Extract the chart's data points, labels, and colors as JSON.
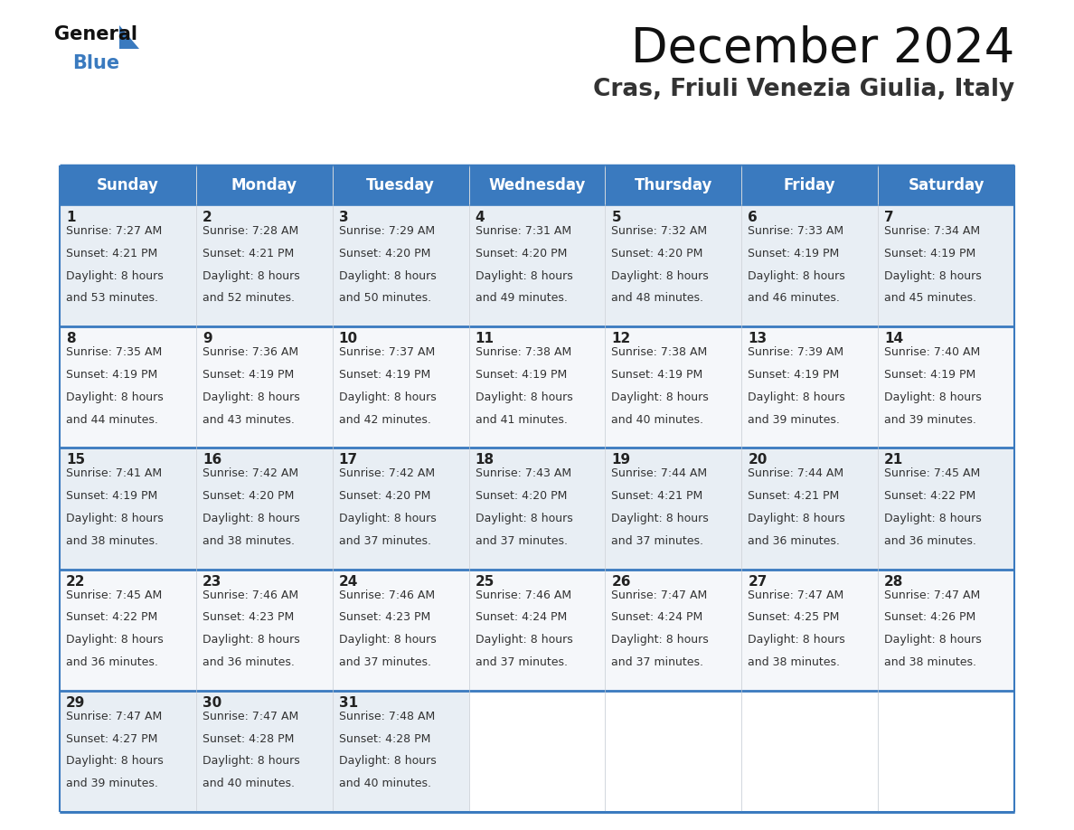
{
  "title": "December 2024",
  "subtitle": "Cras, Friuli Venezia Giulia, Italy",
  "header_color": "#3a7abf",
  "header_text_color": "#ffffff",
  "cell_bg_even": "#e8eef4",
  "cell_bg_odd": "#f5f7fa",
  "border_color": "#3a7abf",
  "sep_color": "#3a7abf",
  "col_line_color": "#c0c8d0",
  "day_names": [
    "Sunday",
    "Monday",
    "Tuesday",
    "Wednesday",
    "Thursday",
    "Friday",
    "Saturday"
  ],
  "days": [
    {
      "day": 1,
      "col": 0,
      "row": 0,
      "sunrise": "7:27 AM",
      "sunset": "4:21 PM",
      "daylight_hrs": 8,
      "daylight_min": "53 minutes."
    },
    {
      "day": 2,
      "col": 1,
      "row": 0,
      "sunrise": "7:28 AM",
      "sunset": "4:21 PM",
      "daylight_hrs": 8,
      "daylight_min": "52 minutes."
    },
    {
      "day": 3,
      "col": 2,
      "row": 0,
      "sunrise": "7:29 AM",
      "sunset": "4:20 PM",
      "daylight_hrs": 8,
      "daylight_min": "50 minutes."
    },
    {
      "day": 4,
      "col": 3,
      "row": 0,
      "sunrise": "7:31 AM",
      "sunset": "4:20 PM",
      "daylight_hrs": 8,
      "daylight_min": "49 minutes."
    },
    {
      "day": 5,
      "col": 4,
      "row": 0,
      "sunrise": "7:32 AM",
      "sunset": "4:20 PM",
      "daylight_hrs": 8,
      "daylight_min": "48 minutes."
    },
    {
      "day": 6,
      "col": 5,
      "row": 0,
      "sunrise": "7:33 AM",
      "sunset": "4:19 PM",
      "daylight_hrs": 8,
      "daylight_min": "46 minutes."
    },
    {
      "day": 7,
      "col": 6,
      "row": 0,
      "sunrise": "7:34 AM",
      "sunset": "4:19 PM",
      "daylight_hrs": 8,
      "daylight_min": "45 minutes."
    },
    {
      "day": 8,
      "col": 0,
      "row": 1,
      "sunrise": "7:35 AM",
      "sunset": "4:19 PM",
      "daylight_hrs": 8,
      "daylight_min": "44 minutes."
    },
    {
      "day": 9,
      "col": 1,
      "row": 1,
      "sunrise": "7:36 AM",
      "sunset": "4:19 PM",
      "daylight_hrs": 8,
      "daylight_min": "43 minutes."
    },
    {
      "day": 10,
      "col": 2,
      "row": 1,
      "sunrise": "7:37 AM",
      "sunset": "4:19 PM",
      "daylight_hrs": 8,
      "daylight_min": "42 minutes."
    },
    {
      "day": 11,
      "col": 3,
      "row": 1,
      "sunrise": "7:38 AM",
      "sunset": "4:19 PM",
      "daylight_hrs": 8,
      "daylight_min": "41 minutes."
    },
    {
      "day": 12,
      "col": 4,
      "row": 1,
      "sunrise": "7:38 AM",
      "sunset": "4:19 PM",
      "daylight_hrs": 8,
      "daylight_min": "40 minutes."
    },
    {
      "day": 13,
      "col": 5,
      "row": 1,
      "sunrise": "7:39 AM",
      "sunset": "4:19 PM",
      "daylight_hrs": 8,
      "daylight_min": "39 minutes."
    },
    {
      "day": 14,
      "col": 6,
      "row": 1,
      "sunrise": "7:40 AM",
      "sunset": "4:19 PM",
      "daylight_hrs": 8,
      "daylight_min": "39 minutes."
    },
    {
      "day": 15,
      "col": 0,
      "row": 2,
      "sunrise": "7:41 AM",
      "sunset": "4:19 PM",
      "daylight_hrs": 8,
      "daylight_min": "38 minutes."
    },
    {
      "day": 16,
      "col": 1,
      "row": 2,
      "sunrise": "7:42 AM",
      "sunset": "4:20 PM",
      "daylight_hrs": 8,
      "daylight_min": "38 minutes."
    },
    {
      "day": 17,
      "col": 2,
      "row": 2,
      "sunrise": "7:42 AM",
      "sunset": "4:20 PM",
      "daylight_hrs": 8,
      "daylight_min": "37 minutes."
    },
    {
      "day": 18,
      "col": 3,
      "row": 2,
      "sunrise": "7:43 AM",
      "sunset": "4:20 PM",
      "daylight_hrs": 8,
      "daylight_min": "37 minutes."
    },
    {
      "day": 19,
      "col": 4,
      "row": 2,
      "sunrise": "7:44 AM",
      "sunset": "4:21 PM",
      "daylight_hrs": 8,
      "daylight_min": "37 minutes."
    },
    {
      "day": 20,
      "col": 5,
      "row": 2,
      "sunrise": "7:44 AM",
      "sunset": "4:21 PM",
      "daylight_hrs": 8,
      "daylight_min": "36 minutes."
    },
    {
      "day": 21,
      "col": 6,
      "row": 2,
      "sunrise": "7:45 AM",
      "sunset": "4:22 PM",
      "daylight_hrs": 8,
      "daylight_min": "36 minutes."
    },
    {
      "day": 22,
      "col": 0,
      "row": 3,
      "sunrise": "7:45 AM",
      "sunset": "4:22 PM",
      "daylight_hrs": 8,
      "daylight_min": "36 minutes."
    },
    {
      "day": 23,
      "col": 1,
      "row": 3,
      "sunrise": "7:46 AM",
      "sunset": "4:23 PM",
      "daylight_hrs": 8,
      "daylight_min": "36 minutes."
    },
    {
      "day": 24,
      "col": 2,
      "row": 3,
      "sunrise": "7:46 AM",
      "sunset": "4:23 PM",
      "daylight_hrs": 8,
      "daylight_min": "37 minutes."
    },
    {
      "day": 25,
      "col": 3,
      "row": 3,
      "sunrise": "7:46 AM",
      "sunset": "4:24 PM",
      "daylight_hrs": 8,
      "daylight_min": "37 minutes."
    },
    {
      "day": 26,
      "col": 4,
      "row": 3,
      "sunrise": "7:47 AM",
      "sunset": "4:24 PM",
      "daylight_hrs": 8,
      "daylight_min": "37 minutes."
    },
    {
      "day": 27,
      "col": 5,
      "row": 3,
      "sunrise": "7:47 AM",
      "sunset": "4:25 PM",
      "daylight_hrs": 8,
      "daylight_min": "38 minutes."
    },
    {
      "day": 28,
      "col": 6,
      "row": 3,
      "sunrise": "7:47 AM",
      "sunset": "4:26 PM",
      "daylight_hrs": 8,
      "daylight_min": "38 minutes."
    },
    {
      "day": 29,
      "col": 0,
      "row": 4,
      "sunrise": "7:47 AM",
      "sunset": "4:27 PM",
      "daylight_hrs": 8,
      "daylight_min": "39 minutes."
    },
    {
      "day": 30,
      "col": 1,
      "row": 4,
      "sunrise": "7:47 AM",
      "sunset": "4:28 PM",
      "daylight_hrs": 8,
      "daylight_min": "40 minutes."
    },
    {
      "day": 31,
      "col": 2,
      "row": 4,
      "sunrise": "7:48 AM",
      "sunset": "4:28 PM",
      "daylight_hrs": 8,
      "daylight_min": "40 minutes."
    }
  ],
  "num_rows": 5,
  "title_fontsize": 38,
  "subtitle_fontsize": 19,
  "dayname_fontsize": 12,
  "day_number_fontsize": 11,
  "cell_text_fontsize": 9
}
